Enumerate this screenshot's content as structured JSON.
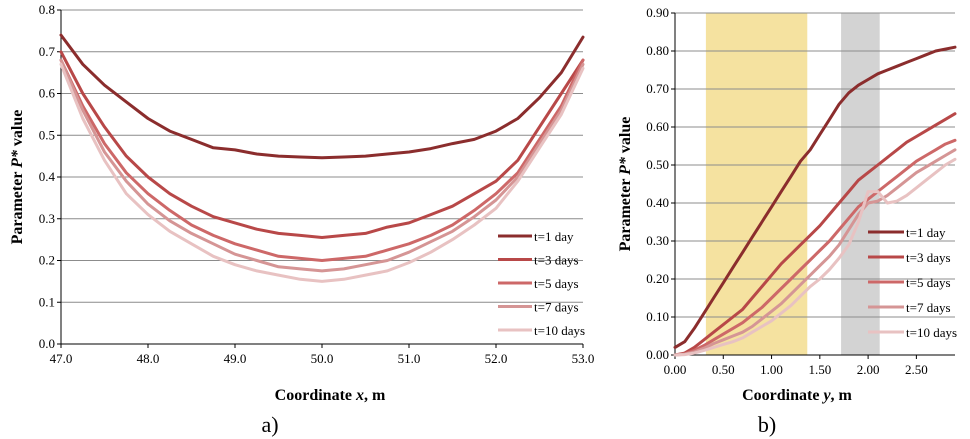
{
  "chart_data": [
    {
      "type": "line",
      "panel_label": "a)",
      "xlabel_prefix": "Coordinate ",
      "xlabel_var": "x",
      "xlabel_suffix": ", m",
      "ylabel_prefix": "Parameter ",
      "ylabel_var": "P*",
      "ylabel_suffix": " value",
      "xlim": [
        47.0,
        53.0
      ],
      "ylim": [
        0,
        0.8
      ],
      "x_ticks": [
        "47.0",
        "48.0",
        "49.0",
        "50.0",
        "51.0",
        "52.0",
        "53.0"
      ],
      "y_ticks": [
        "0.0",
        "0.1",
        "0.2",
        "0.3",
        "0.4",
        "0.5",
        "0.6",
        "0.7",
        "0.8"
      ],
      "grid": "horizontal",
      "legend_position": "bottom-right",
      "x": [
        47.0,
        47.25,
        47.5,
        47.75,
        48.0,
        48.25,
        48.5,
        48.75,
        49.0,
        49.25,
        49.5,
        49.75,
        50.0,
        50.25,
        50.5,
        50.75,
        51.0,
        51.25,
        51.5,
        51.75,
        52.0,
        52.25,
        52.5,
        52.75,
        53.0
      ],
      "series": [
        {
          "name": "t=1 day",
          "color": "#8b2d2d",
          "values": [
            0.74,
            0.67,
            0.62,
            0.58,
            0.54,
            0.51,
            0.49,
            0.47,
            0.465,
            0.455,
            0.45,
            0.448,
            0.446,
            0.448,
            0.45,
            0.455,
            0.46,
            0.468,
            0.48,
            0.49,
            0.51,
            0.54,
            0.59,
            0.65,
            0.735
          ]
        },
        {
          "name": "t=3 days",
          "color": "#b84848",
          "values": [
            0.7,
            0.6,
            0.52,
            0.45,
            0.4,
            0.36,
            0.33,
            0.305,
            0.29,
            0.275,
            0.265,
            0.26,
            0.255,
            0.26,
            0.265,
            0.28,
            0.29,
            0.31,
            0.33,
            0.36,
            0.39,
            0.44,
            0.52,
            0.6,
            0.68
          ]
        },
        {
          "name": "t=5 days",
          "color": "#cd6868",
          "values": [
            0.68,
            0.57,
            0.48,
            0.41,
            0.36,
            0.32,
            0.285,
            0.26,
            0.24,
            0.225,
            0.21,
            0.205,
            0.2,
            0.205,
            0.21,
            0.225,
            0.24,
            0.26,
            0.285,
            0.32,
            0.36,
            0.41,
            0.49,
            0.57,
            0.68
          ]
        },
        {
          "name": "t=7 days",
          "color": "#d59595",
          "values": [
            0.68,
            0.56,
            0.46,
            0.39,
            0.335,
            0.295,
            0.265,
            0.24,
            0.215,
            0.2,
            0.185,
            0.18,
            0.175,
            0.18,
            0.19,
            0.2,
            0.22,
            0.245,
            0.27,
            0.305,
            0.345,
            0.4,
            0.48,
            0.56,
            0.67
          ]
        },
        {
          "name": "t=10 days",
          "color": "#e8c2c2",
          "values": [
            0.67,
            0.54,
            0.44,
            0.36,
            0.31,
            0.27,
            0.24,
            0.21,
            0.19,
            0.175,
            0.165,
            0.155,
            0.15,
            0.155,
            0.165,
            0.175,
            0.195,
            0.22,
            0.25,
            0.285,
            0.325,
            0.39,
            0.47,
            0.55,
            0.66
          ]
        }
      ]
    },
    {
      "type": "line",
      "panel_label": "b)",
      "xlabel_prefix": "Coordinate ",
      "xlabel_var": "y",
      "xlabel_suffix": ", m",
      "ylabel_prefix": "Parameter ",
      "ylabel_var": "P*",
      "ylabel_suffix": " value",
      "xlim": [
        0,
        2.9
      ],
      "ylim": [
        0,
        0.9
      ],
      "x_ticks": [
        "0.00",
        "0.50",
        "1.00",
        "1.50",
        "2.00",
        "2.50"
      ],
      "y_ticks": [
        "0.00",
        "0.10",
        "0.20",
        "0.30",
        "0.40",
        "0.50",
        "0.60",
        "0.70",
        "0.80",
        "0.90"
      ],
      "grid": "horizontal",
      "legend_position": "bottom-right",
      "shaded_bands": [
        {
          "from": 0.32,
          "to": 1.37,
          "color": "#f5e2a0"
        },
        {
          "from": 1.72,
          "to": 2.12,
          "color": "#d3d3d3"
        }
      ],
      "x": [
        0.0,
        0.1,
        0.2,
        0.3,
        0.4,
        0.5,
        0.6,
        0.7,
        0.8,
        0.9,
        1.0,
        1.1,
        1.2,
        1.3,
        1.4,
        1.5,
        1.6,
        1.7,
        1.8,
        1.9,
        2.0,
        2.1,
        2.2,
        2.3,
        2.4,
        2.5,
        2.6,
        2.7,
        2.8,
        2.9
      ],
      "series": [
        {
          "name": "t=1 day",
          "color": "#8b2d2d",
          "values": [
            0.02,
            0.035,
            0.07,
            0.11,
            0.15,
            0.19,
            0.23,
            0.27,
            0.31,
            0.35,
            0.39,
            0.43,
            0.47,
            0.51,
            0.54,
            0.58,
            0.62,
            0.66,
            0.69,
            0.71,
            0.725,
            0.74,
            0.75,
            0.76,
            0.77,
            0.78,
            0.79,
            0.8,
            0.805,
            0.81
          ]
        },
        {
          "name": "t=3 days",
          "color": "#b84848",
          "values": [
            0.0,
            0.005,
            0.02,
            0.04,
            0.06,
            0.08,
            0.1,
            0.12,
            0.15,
            0.18,
            0.21,
            0.24,
            0.265,
            0.29,
            0.315,
            0.34,
            0.37,
            0.4,
            0.43,
            0.46,
            0.48,
            0.5,
            0.52,
            0.54,
            0.56,
            0.575,
            0.59,
            0.605,
            0.62,
            0.635
          ]
        },
        {
          "name": "t=5 days",
          "color": "#cd6868",
          "values": [
            0.0,
            0.003,
            0.012,
            0.025,
            0.04,
            0.055,
            0.07,
            0.085,
            0.105,
            0.125,
            0.15,
            0.175,
            0.2,
            0.225,
            0.25,
            0.275,
            0.3,
            0.33,
            0.36,
            0.39,
            0.41,
            0.43,
            0.45,
            0.47,
            0.49,
            0.51,
            0.525,
            0.54,
            0.555,
            0.565
          ]
        },
        {
          "name": "t=7 days",
          "color": "#d59595",
          "values": [
            0.0,
            0.002,
            0.008,
            0.018,
            0.03,
            0.04,
            0.05,
            0.06,
            0.075,
            0.095,
            0.115,
            0.135,
            0.16,
            0.185,
            0.21,
            0.235,
            0.26,
            0.29,
            0.33,
            0.37,
            0.4,
            0.405,
            0.42,
            0.44,
            0.46,
            0.48,
            0.495,
            0.51,
            0.525,
            0.54
          ]
        },
        {
          "name": "t=10 days",
          "color": "#e8c2c2",
          "values": [
            0.0,
            0.001,
            0.005,
            0.012,
            0.02,
            0.028,
            0.035,
            0.045,
            0.06,
            0.075,
            0.09,
            0.11,
            0.13,
            0.155,
            0.18,
            0.2,
            0.225,
            0.255,
            0.29,
            0.35,
            0.43,
            0.43,
            0.4,
            0.405,
            0.42,
            0.44,
            0.46,
            0.48,
            0.5,
            0.515
          ]
        }
      ]
    }
  ]
}
